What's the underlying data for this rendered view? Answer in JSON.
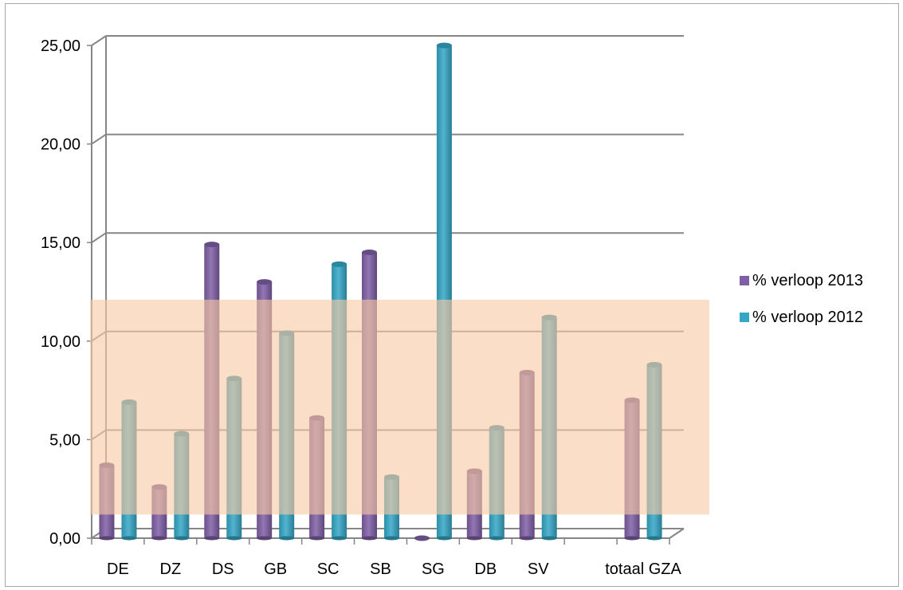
{
  "chart_data": {
    "type": "bar",
    "categories": [
      "DE",
      "DZ",
      "DS",
      "GB",
      "SC",
      "SB",
      "SG",
      "DB",
      "SV",
      "",
      "totaal GZA"
    ],
    "series": [
      {
        "name": "% verloop 2013",
        "values": [
          3.7,
          2.6,
          14.9,
          13.0,
          6.1,
          14.5,
          0.0,
          3.4,
          8.4,
          null,
          7.0
        ],
        "color": "#7f5fa6"
      },
      {
        "name": "% verloop 2012",
        "values": [
          6.9,
          5.3,
          8.1,
          10.4,
          13.9,
          3.1,
          25.0,
          5.6,
          11.2,
          null,
          8.8
        ],
        "color": "#35a7c6"
      }
    ],
    "y_ticks": [
      "0,00",
      "5,00",
      "10,00",
      "15,00",
      "20,00",
      "25,00"
    ],
    "ylim": [
      0,
      25
    ],
    "grid": true,
    "legend_position": "right",
    "highlight_band": {
      "from": 1.2,
      "to": 12.1,
      "color": "#f8c9a5"
    }
  }
}
